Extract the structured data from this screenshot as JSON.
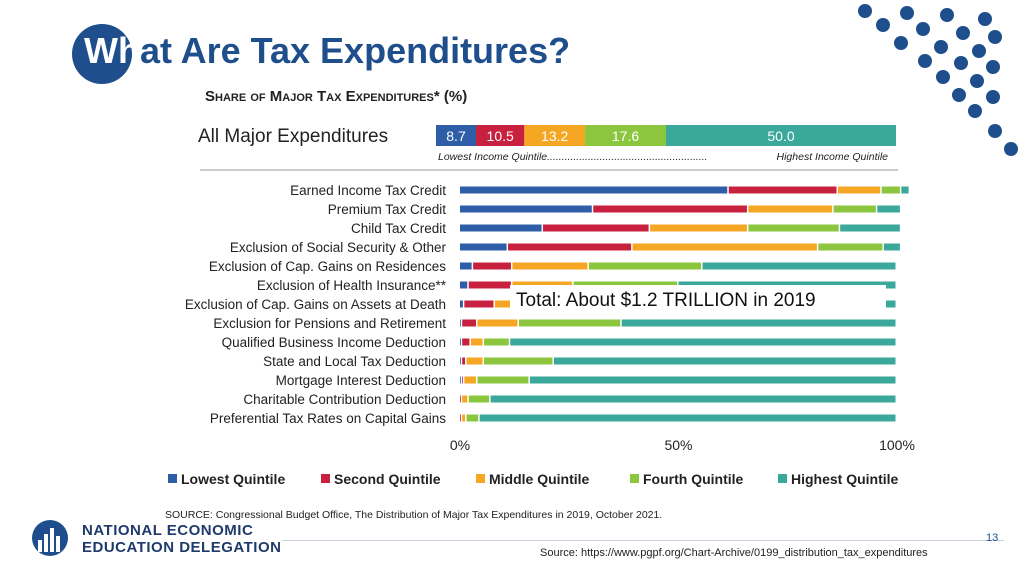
{
  "slide": {
    "title": "What Are Tax Expenditures?",
    "title_circled": "Wh",
    "title_rest": "at Are Tax Expenditures?",
    "page_number": "13",
    "source_url": "Source: https://www.pgpf.org/Chart-Archive/0199_distribution_tax_expenditures",
    "logo_line1": "NATIONAL ECONOMIC",
    "logo_line2": "EDUCATION DELEGATION"
  },
  "chart_data": {
    "type": "bar",
    "stacked": true,
    "orientation": "horizontal",
    "title": "Share of Major Tax Expenditures* (%)",
    "summary": {
      "label": "All Major Expenditures",
      "values": [
        8.7,
        10.5,
        13.2,
        17.6,
        50.0
      ],
      "labels": [
        "8.7",
        "10.5",
        "13.2",
        "17.6",
        "50.0"
      ],
      "low_note": "Lowest Income Quintile.......................................................",
      "high_note": "Highest Income Quintile"
    },
    "categories": [
      "Earned Income Tax Credit",
      "Premium Tax Credit",
      "Child Tax Credit",
      "Exclusion of Social Security & Other",
      "Exclusion of Cap. Gains on Residences",
      "Exclusion of Health Insurance**",
      "Exclusion of Cap. Gains on Assets at Death",
      "Exclusion for Pensions and Retirement",
      "Qualified Business Income Deduction",
      "State and Local Tax Deduction",
      "Mortgage Interest Deduction",
      "Charitable Contribution Deduction",
      "Preferential Tax Rates on Capital Gains"
    ],
    "series": [
      {
        "name": "Lowest Quintile",
        "color": "#2e5ea8",
        "values": [
          61.5,
          30.5,
          19.0,
          11.0,
          3.0,
          2.0,
          1.0,
          0.5,
          0.5,
          0.5,
          0.5,
          0.0,
          0.0
        ]
      },
      {
        "name": "Second Quintile",
        "color": "#c8203f",
        "values": [
          25.0,
          35.5,
          24.5,
          28.5,
          9.0,
          10.0,
          7.0,
          3.5,
          2.0,
          1.0,
          0.5,
          0.5,
          0.5
        ]
      },
      {
        "name": "Middle Quintile",
        "color": "#f5a623",
        "values": [
          10.0,
          19.5,
          22.5,
          42.5,
          17.5,
          14.0,
          10.0,
          9.5,
          3.0,
          4.0,
          3.0,
          1.5,
          1.0
        ]
      },
      {
        "name": "Fourth Quintile",
        "color": "#8cc63f",
        "values": [
          4.5,
          10.0,
          21.0,
          15.0,
          26.0,
          24.0,
          23.0,
          23.5,
          6.0,
          16.0,
          12.0,
          5.0,
          3.0
        ]
      },
      {
        "name": "Highest Quintile",
        "color": "#3aa89a",
        "values": [
          2.0,
          5.5,
          14.0,
          4.0,
          44.5,
          50.0,
          59.0,
          63.0,
          88.5,
          78.5,
          84.0,
          93.0,
          95.5
        ]
      }
    ],
    "xticks": [
      "0%",
      "50%",
      "100%"
    ],
    "xlim": [
      0,
      100
    ],
    "annotation": "Total: About $1.2 TRILLION in 2019",
    "source": "SOURCE: Congressional Budget Office, The Distribution of Major Tax Expenditures in 2019, October 2021."
  }
}
